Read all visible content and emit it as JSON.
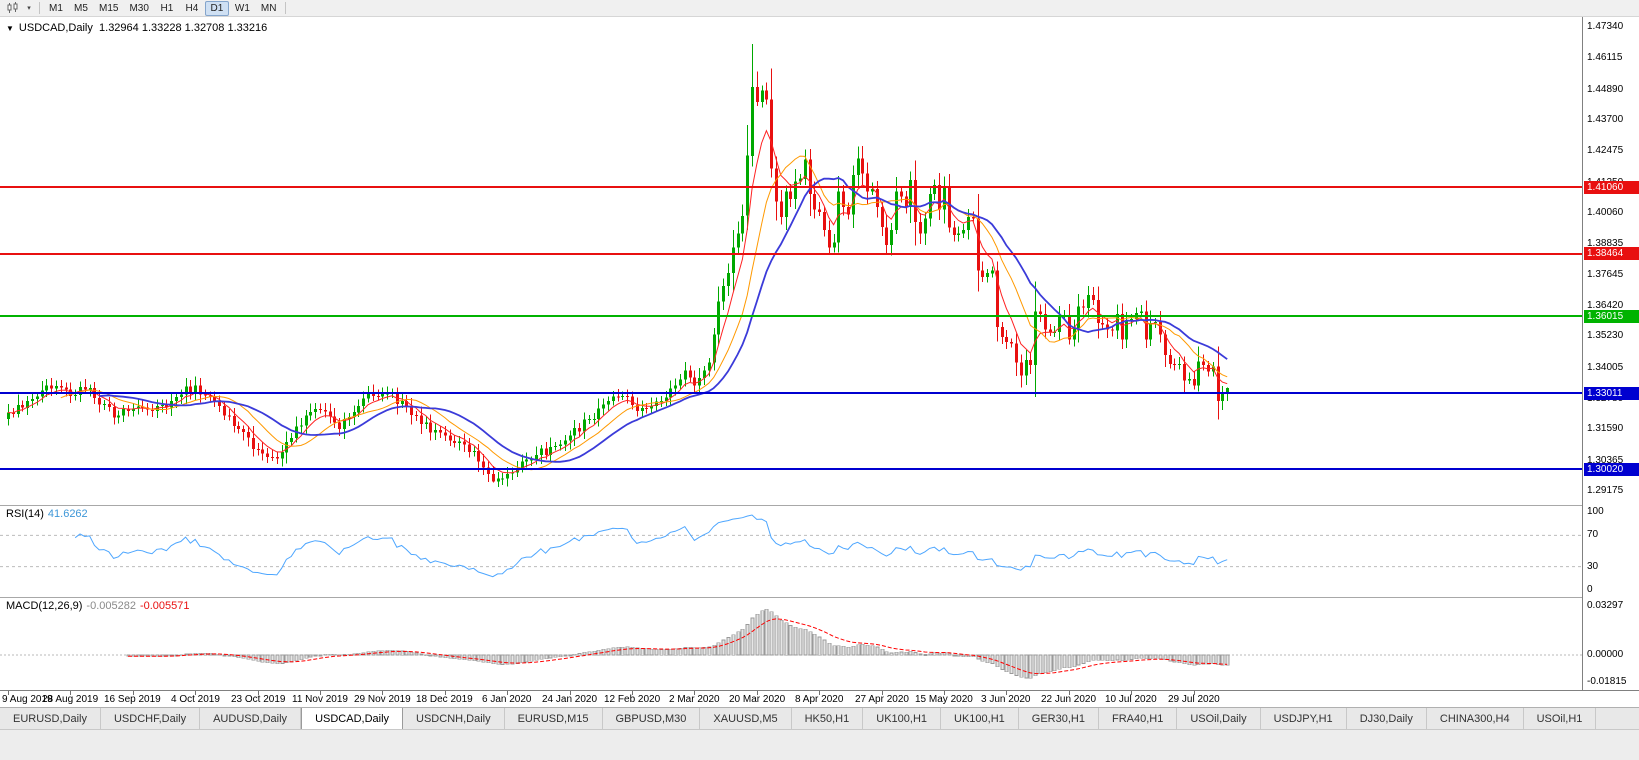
{
  "toolbar": {
    "timeframes": [
      "M1",
      "M5",
      "M15",
      "M30",
      "H1",
      "H4",
      "D1",
      "W1",
      "MN"
    ],
    "active_timeframe": "D1"
  },
  "chart": {
    "collapse_glyph": "▼",
    "title_symbol": "USDCAD,Daily",
    "title_ohlc": "1.32964 1.33228 1.32708 1.33216"
  },
  "chart_data": {
    "type": "candlestick",
    "symbol": "USDCAD",
    "timeframe": "Daily",
    "ohlc_current": {
      "open": 1.32964,
      "high": 1.33228,
      "low": 1.32708,
      "close": 1.33216
    },
    "price_axis_ticks": [
      "1.47340",
      "1.46115",
      "1.44890",
      "1.43700",
      "1.42475",
      "1.41250",
      "1.40060",
      "1.38835",
      "1.37645",
      "1.36420",
      "1.35230",
      "1.34005",
      "1.32780",
      "1.31590",
      "1.30365",
      "1.29175"
    ],
    "hlines": [
      {
        "value": 1.4106,
        "label": "1.41060",
        "color": "#e81010",
        "width": 2
      },
      {
        "value": 1.38464,
        "label": "1.38464",
        "color": "#e81010",
        "width": 2
      },
      {
        "value": 1.36015,
        "label": "1.36015",
        "color": "#00b300",
        "width": 2
      },
      {
        "value": 1.33011,
        "label": "1.33011",
        "color": "#0000d0",
        "width": 2
      },
      {
        "value": 1.3002,
        "label": "1.30020",
        "color": "#0000d0",
        "width": 2
      }
    ],
    "x_labels": [
      {
        "bar": 0,
        "text": "9 Aug 2019"
      },
      {
        "bar": 13,
        "text": "28 Aug 2019"
      },
      {
        "bar": 26,
        "text": "16 Sep 2019"
      },
      {
        "bar": 39,
        "text": "4 Oct 2019"
      },
      {
        "bar": 52,
        "text": "23 Oct 2019"
      },
      {
        "bar": 65,
        "text": "11 Nov 2019"
      },
      {
        "bar": 78,
        "text": "29 Nov 2019"
      },
      {
        "bar": 91,
        "text": "18 Dec 2019"
      },
      {
        "bar": 104,
        "text": "6 Jan 2020"
      },
      {
        "bar": 117,
        "text": "24 Jan 2020"
      },
      {
        "bar": 130,
        "text": "12 Feb 2020"
      },
      {
        "bar": 143,
        "text": "2 Mar 2020"
      },
      {
        "bar": 156,
        "text": "20 Mar 2020"
      },
      {
        "bar": 169,
        "text": "8 Apr 2020"
      },
      {
        "bar": 182,
        "text": "27 Apr 2020"
      },
      {
        "bar": 195,
        "text": "15 May 2020"
      },
      {
        "bar": 208,
        "text": "3 Jun 2020"
      },
      {
        "bar": 221,
        "text": "22 Jun 2020"
      },
      {
        "bar": 234,
        "text": "10 Jul 2020"
      },
      {
        "bar": 247,
        "text": "29 Jul 2020"
      }
    ],
    "bars": 255,
    "close_anchors": [
      [
        0,
        1.3225
      ],
      [
        4,
        1.327
      ],
      [
        8,
        1.333
      ],
      [
        13,
        1.329
      ],
      [
        17,
        1.332
      ],
      [
        22,
        1.3205
      ],
      [
        26,
        1.324
      ],
      [
        30,
        1.323
      ],
      [
        34,
        1.327
      ],
      [
        39,
        1.333
      ],
      [
        44,
        1.325
      ],
      [
        48,
        1.316
      ],
      [
        52,
        1.308
      ],
      [
        56,
        1.3045
      ],
      [
        60,
        1.317
      ],
      [
        65,
        1.3235
      ],
      [
        69,
        1.316
      ],
      [
        74,
        1.328
      ],
      [
        78,
        1.33
      ],
      [
        82,
        1.327
      ],
      [
        86,
        1.318
      ],
      [
        91,
        1.3135
      ],
      [
        95,
        1.31
      ],
      [
        99,
        1.301
      ],
      [
        101,
        1.2955
      ],
      [
        104,
        1.2985
      ],
      [
        109,
        1.304
      ],
      [
        113,
        1.309
      ],
      [
        117,
        1.3135
      ],
      [
        121,
        1.32
      ],
      [
        125,
        1.327
      ],
      [
        128,
        1.329
      ],
      [
        130,
        1.3255
      ],
      [
        133,
        1.324
      ],
      [
        136,
        1.327
      ],
      [
        139,
        1.333
      ],
      [
        141,
        1.339
      ],
      [
        143,
        1.333
      ],
      [
        144,
        1.336
      ],
      [
        145,
        1.339
      ],
      [
        146,
        1.342
      ],
      [
        147,
        1.353
      ],
      [
        148,
        1.366
      ],
      [
        149,
        1.372
      ],
      [
        150,
        1.377
      ],
      [
        151,
        1.387
      ],
      [
        152,
        1.3925
      ],
      [
        153,
        1.3995
      ],
      [
        154,
        1.423
      ],
      [
        155,
        1.45
      ],
      [
        156,
        1.444
      ],
      [
        157,
        1.4485
      ],
      [
        158,
        1.445
      ],
      [
        159,
        1.418
      ],
      [
        160,
        1.405
      ],
      [
        161,
        1.399
      ],
      [
        162,
        1.409
      ],
      [
        163,
        1.406
      ],
      [
        164,
        1.413
      ],
      [
        165,
        1.414
      ],
      [
        166,
        1.4215
      ],
      [
        167,
        1.408
      ],
      [
        168,
        1.402
      ],
      [
        169,
        1.401
      ],
      [
        170,
        1.394
      ],
      [
        171,
        1.387
      ],
      [
        172,
        1.389
      ],
      [
        173,
        1.409
      ],
      [
        174,
        1.403
      ],
      [
        175,
        1.4
      ],
      [
        176,
        1.4155
      ],
      [
        177,
        1.422
      ],
      [
        178,
        1.416
      ],
      [
        179,
        1.409
      ],
      [
        180,
        1.41
      ],
      [
        181,
        1.403
      ],
      [
        182,
        1.395
      ],
      [
        183,
        1.388
      ],
      [
        184,
        1.394
      ],
      [
        185,
        1.409
      ],
      [
        186,
        1.407
      ],
      [
        187,
        1.403
      ],
      [
        188,
        1.4135
      ],
      [
        189,
        1.397
      ],
      [
        190,
        1.3925
      ],
      [
        191,
        1.3985
      ],
      [
        192,
        1.408
      ],
      [
        193,
        1.4115
      ],
      [
        194,
        1.402
      ],
      [
        195,
        1.411
      ],
      [
        196,
        1.395
      ],
      [
        197,
        1.392
      ],
      [
        198,
        1.3925
      ],
      [
        199,
        1.394
      ],
      [
        200,
        1.399
      ],
      [
        201,
        1.3985
      ],
      [
        202,
        1.378
      ],
      [
        203,
        1.3755
      ],
      [
        204,
        1.377
      ],
      [
        205,
        1.378
      ],
      [
        206,
        1.356
      ],
      [
        207,
        1.352
      ],
      [
        208,
        1.35
      ],
      [
        209,
        1.3495
      ],
      [
        210,
        1.342
      ],
      [
        211,
        1.337
      ],
      [
        212,
        1.343
      ],
      [
        213,
        1.341
      ],
      [
        214,
        1.362
      ],
      [
        215,
        1.361
      ],
      [
        216,
        1.355
      ],
      [
        217,
        1.354
      ],
      [
        218,
        1.354
      ],
      [
        219,
        1.36
      ],
      [
        220,
        1.3605
      ],
      [
        221,
        1.351
      ],
      [
        222,
        1.3555
      ],
      [
        223,
        1.364
      ],
      [
        224,
        1.3635
      ],
      [
        225,
        1.3685
      ],
      [
        226,
        1.3665
      ],
      [
        227,
        1.3576
      ],
      [
        228,
        1.357
      ],
      [
        229,
        1.355
      ],
      [
        230,
        1.3545
      ],
      [
        231,
        1.361
      ],
      [
        232,
        1.351
      ],
      [
        233,
        1.3585
      ],
      [
        234,
        1.359
      ],
      [
        235,
        1.3615
      ],
      [
        236,
        1.362
      ],
      [
        237,
        1.351
      ],
      [
        238,
        1.3575
      ],
      [
        239,
        1.358
      ],
      [
        240,
        1.353
      ],
      [
        241,
        1.345
      ],
      [
        242,
        1.3415
      ],
      [
        243,
        1.341
      ],
      [
        244,
        1.3415
      ],
      [
        245,
        1.335
      ],
      [
        246,
        1.3355
      ],
      [
        247,
        1.333
      ],
      [
        248,
        1.3425
      ],
      [
        249,
        1.341
      ],
      [
        250,
        1.3385
      ],
      [
        251,
        1.3405
      ],
      [
        252,
        1.327
      ],
      [
        253,
        1.33
      ],
      [
        254,
        1.33216
      ]
    ],
    "noise_seed": 20200807,
    "noise_amp": 0.004,
    "wick_base": 0.0012,
    "wick_overrides": {
      "101": {
        "l": 1.295
      },
      "154": {
        "h": 1.435
      },
      "155": {
        "h": 1.4668
      },
      "156": {
        "h": 1.456
      },
      "254": {
        "o": 1.32964,
        "h": 1.33228,
        "l": 1.32708,
        "c": 1.33216
      }
    },
    "candle_up_color": "#00a800",
    "candle_down_color": "#e81010",
    "moving_averages": [
      {
        "type": "ema",
        "period": 6,
        "color": "#ff2222",
        "width": 1
      },
      {
        "type": "sma",
        "period": 12,
        "color": "#ff9900",
        "width": 1
      },
      {
        "type": "sma",
        "period": 20,
        "color": "#3b3bd9",
        "width": 1.8
      }
    ],
    "rsi": {
      "name": "RSI(14)",
      "value": "41.6262",
      "period": 14,
      "axis_labels": [
        "100",
        "70",
        "30",
        "0"
      ],
      "axis_values": [
        100,
        70,
        30,
        0
      ],
      "dashed_levels": [
        70,
        30
      ],
      "color": "#4da6ff"
    },
    "macd": {
      "name": "MACD(12,26,9)",
      "value_main": "-0.005282",
      "value_signal": "-0.005571",
      "fast": 12,
      "slow": 26,
      "signal": 9,
      "axis_labels": [
        "0.03297",
        "0.00000",
        "-0.01815"
      ],
      "axis_values": [
        0.03297,
        0,
        -0.01815
      ],
      "hist_fill": "#e6e6e6",
      "hist_stroke": "#9a9a9a",
      "signal_color": "#ff0000"
    }
  },
  "tabs": {
    "active_index": 3,
    "items": [
      "EURUSD,Daily",
      "USDCHF,Daily",
      "AUDUSD,Daily",
      "USDCAD,Daily",
      "USDCNH,Daily",
      "EURUSD,M15",
      "GBPUSD,M30",
      "XAUUSD,M5",
      "HK50,H1",
      "UK100,H1",
      "UK100,H1",
      "GER30,H1",
      "FRA40,H1",
      "USOil,Daily",
      "USDJPY,H1",
      "DJ30,Daily",
      "CHINA300,H4",
      "USOil,H1"
    ]
  }
}
